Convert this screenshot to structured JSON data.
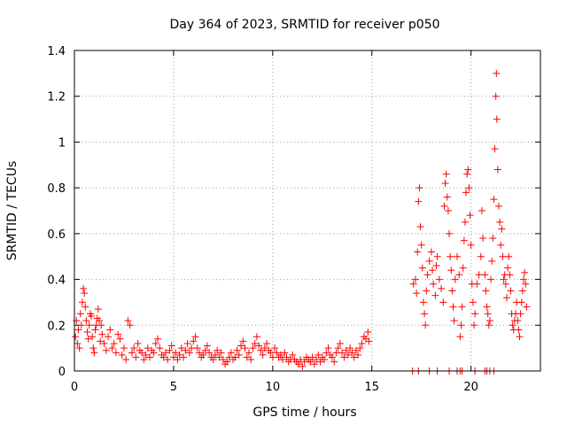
{
  "chart_data": {
    "type": "scatter",
    "title": "Day 364 of 2023, SRMTID for receiver p050",
    "xlabel": "GPS time / hours",
    "ylabel": "SRMTID / TECUs",
    "xlim": [
      0,
      23.5
    ],
    "ylim": [
      0,
      1.4
    ],
    "x_ticks": [
      0,
      5,
      10,
      15,
      20
    ],
    "x_tick_labels": [
      "0",
      "5",
      "10",
      "15",
      "20"
    ],
    "y_ticks": [
      0,
      0.2,
      0.4,
      0.6,
      0.8,
      1.0,
      1.2,
      1.4
    ],
    "y_tick_labels": [
      "0",
      "0.2",
      "0.4",
      "0.6",
      "0.8",
      "1",
      "1.2",
      "1.4"
    ],
    "grid": true,
    "marker": "plus",
    "series": [
      {
        "name": "SRMTID",
        "color": "#ff0000",
        "points": [
          [
            0.05,
            0.15
          ],
          [
            0.1,
            0.22
          ],
          [
            0.15,
            0.12
          ],
          [
            0.2,
            0.18
          ],
          [
            0.25,
            0.1
          ],
          [
            0.3,
            0.25
          ],
          [
            0.35,
            0.2
          ],
          [
            0.4,
            0.3
          ],
          [
            0.45,
            0.36
          ],
          [
            0.5,
            0.34
          ],
          [
            0.55,
            0.28
          ],
          [
            0.6,
            0.22
          ],
          [
            0.65,
            0.17
          ],
          [
            0.7,
            0.14
          ],
          [
            0.75,
            0.2
          ],
          [
            0.8,
            0.25
          ],
          [
            0.85,
            0.24
          ],
          [
            0.9,
            0.15
          ],
          [
            0.95,
            0.1
          ],
          [
            1.0,
            0.08
          ],
          [
            1.05,
            0.18
          ],
          [
            1.1,
            0.2
          ],
          [
            1.15,
            0.23
          ],
          [
            1.2,
            0.27
          ],
          [
            1.25,
            0.22
          ],
          [
            1.3,
            0.13
          ],
          [
            1.35,
            0.2
          ],
          [
            1.4,
            0.16
          ],
          [
            1.5,
            0.12
          ],
          [
            1.6,
            0.09
          ],
          [
            1.7,
            0.15
          ],
          [
            1.8,
            0.18
          ],
          [
            1.9,
            0.1
          ],
          [
            2.0,
            0.12
          ],
          [
            2.1,
            0.08
          ],
          [
            2.2,
            0.16
          ],
          [
            2.3,
            0.14
          ],
          [
            2.4,
            0.07
          ],
          [
            2.5,
            0.1
          ],
          [
            2.6,
            0.05
          ],
          [
            2.7,
            0.22
          ],
          [
            2.8,
            0.2
          ],
          [
            2.9,
            0.08
          ],
          [
            3.0,
            0.1
          ],
          [
            3.1,
            0.06
          ],
          [
            3.2,
            0.12
          ],
          [
            3.3,
            0.09
          ],
          [
            3.4,
            0.08
          ],
          [
            3.5,
            0.05
          ],
          [
            3.6,
            0.07
          ],
          [
            3.7,
            0.1
          ],
          [
            3.8,
            0.06
          ],
          [
            3.9,
            0.09
          ],
          [
            4.0,
            0.08
          ],
          [
            4.1,
            0.12
          ],
          [
            4.2,
            0.14
          ],
          [
            4.3,
            0.1
          ],
          [
            4.4,
            0.07
          ],
          [
            4.5,
            0.06
          ],
          [
            4.6,
            0.08
          ],
          [
            4.7,
            0.05
          ],
          [
            4.8,
            0.09
          ],
          [
            4.9,
            0.11
          ],
          [
            5.0,
            0.06
          ],
          [
            5.1,
            0.08
          ],
          [
            5.2,
            0.05
          ],
          [
            5.3,
            0.07
          ],
          [
            5.4,
            0.1
          ],
          [
            5.5,
            0.06
          ],
          [
            5.6,
            0.09
          ],
          [
            5.7,
            0.12
          ],
          [
            5.8,
            0.08
          ],
          [
            5.9,
            0.1
          ],
          [
            6.0,
            0.13
          ],
          [
            6.1,
            0.15
          ],
          [
            6.2,
            0.1
          ],
          [
            6.3,
            0.08
          ],
          [
            6.4,
            0.06
          ],
          [
            6.5,
            0.07
          ],
          [
            6.6,
            0.09
          ],
          [
            6.7,
            0.11
          ],
          [
            6.8,
            0.08
          ],
          [
            6.9,
            0.06
          ],
          [
            7.0,
            0.05
          ],
          [
            7.1,
            0.07
          ],
          [
            7.2,
            0.09
          ],
          [
            7.3,
            0.06
          ],
          [
            7.4,
            0.08
          ],
          [
            7.5,
            0.05
          ],
          [
            7.6,
            0.03
          ],
          [
            7.7,
            0.04
          ],
          [
            7.8,
            0.06
          ],
          [
            7.9,
            0.08
          ],
          [
            8.0,
            0.05
          ],
          [
            8.1,
            0.06
          ],
          [
            8.2,
            0.09
          ],
          [
            8.3,
            0.07
          ],
          [
            8.4,
            0.11
          ],
          [
            8.5,
            0.13
          ],
          [
            8.6,
            0.1
          ],
          [
            8.7,
            0.06
          ],
          [
            8.8,
            0.08
          ],
          [
            8.9,
            0.05
          ],
          [
            9.0,
            0.1
          ],
          [
            9.1,
            0.12
          ],
          [
            9.2,
            0.15
          ],
          [
            9.3,
            0.11
          ],
          [
            9.4,
            0.09
          ],
          [
            9.5,
            0.07
          ],
          [
            9.6,
            0.1
          ],
          [
            9.7,
            0.12
          ],
          [
            9.8,
            0.09
          ],
          [
            9.9,
            0.08
          ],
          [
            10.0,
            0.06
          ],
          [
            10.1,
            0.1
          ],
          [
            10.2,
            0.08
          ],
          [
            10.3,
            0.06
          ],
          [
            10.4,
            0.07
          ],
          [
            10.5,
            0.05
          ],
          [
            10.6,
            0.08
          ],
          [
            10.7,
            0.06
          ],
          [
            10.8,
            0.04
          ],
          [
            10.9,
            0.05
          ],
          [
            11.0,
            0.07
          ],
          [
            11.1,
            0.05
          ],
          [
            11.2,
            0.04
          ],
          [
            11.3,
            0.03
          ],
          [
            11.4,
            0.05
          ],
          [
            11.5,
            0.02
          ],
          [
            11.6,
            0.04
          ],
          [
            11.7,
            0.06
          ],
          [
            11.8,
            0.05
          ],
          [
            11.9,
            0.04
          ],
          [
            12.0,
            0.06
          ],
          [
            12.1,
            0.03
          ],
          [
            12.2,
            0.05
          ],
          [
            12.3,
            0.07
          ],
          [
            12.4,
            0.04
          ],
          [
            12.5,
            0.06
          ],
          [
            12.6,
            0.05
          ],
          [
            12.7,
            0.08
          ],
          [
            12.8,
            0.1
          ],
          [
            12.9,
            0.07
          ],
          [
            13.0,
            0.06
          ],
          [
            13.1,
            0.04
          ],
          [
            13.2,
            0.08
          ],
          [
            13.3,
            0.1
          ],
          [
            13.4,
            0.12
          ],
          [
            13.5,
            0.08
          ],
          [
            13.6,
            0.06
          ],
          [
            13.7,
            0.09
          ],
          [
            13.8,
            0.07
          ],
          [
            13.9,
            0.1
          ],
          [
            14.0,
            0.08
          ],
          [
            14.1,
            0.06
          ],
          [
            14.2,
            0.09
          ],
          [
            14.3,
            0.07
          ],
          [
            14.4,
            0.1
          ],
          [
            14.5,
            0.12
          ],
          [
            14.6,
            0.15
          ],
          [
            14.7,
            0.14
          ],
          [
            14.8,
            0.17
          ],
          [
            14.85,
            0.13
          ],
          [
            17.1,
            0.38
          ],
          [
            17.2,
            0.4
          ],
          [
            17.25,
            0.34
          ],
          [
            17.3,
            0.52
          ],
          [
            17.35,
            0.74
          ],
          [
            17.4,
            0.8
          ],
          [
            17.45,
            0.63
          ],
          [
            17.5,
            0.55
          ],
          [
            17.55,
            0.45
          ],
          [
            17.6,
            0.3
          ],
          [
            17.65,
            0.25
          ],
          [
            17.7,
            0.2
          ],
          [
            17.75,
            0.35
          ],
          [
            17.8,
            0.42
          ],
          [
            17.9,
            0.48
          ],
          [
            18.0,
            0.52
          ],
          [
            18.05,
            0.44
          ],
          [
            18.1,
            0.38
          ],
          [
            18.2,
            0.33
          ],
          [
            18.25,
            0.46
          ],
          [
            18.3,
            0.5
          ],
          [
            18.4,
            0.4
          ],
          [
            18.5,
            0.36
          ],
          [
            18.6,
            0.3
          ],
          [
            18.65,
            0.72
          ],
          [
            18.7,
            0.82
          ],
          [
            18.75,
            0.86
          ],
          [
            18.8,
            0.76
          ],
          [
            18.85,
            0.7
          ],
          [
            18.9,
            0.6
          ],
          [
            18.95,
            0.5
          ],
          [
            19.0,
            0.44
          ],
          [
            19.05,
            0.35
          ],
          [
            19.1,
            0.28
          ],
          [
            19.15,
            0.22
          ],
          [
            19.2,
            0.4
          ],
          [
            19.3,
            0.5
          ],
          [
            19.4,
            0.42
          ],
          [
            19.45,
            0.15
          ],
          [
            19.5,
            0.2
          ],
          [
            19.55,
            0.28
          ],
          [
            19.6,
            0.45
          ],
          [
            19.65,
            0.57
          ],
          [
            19.7,
            0.65
          ],
          [
            19.75,
            0.78
          ],
          [
            19.8,
            0.86
          ],
          [
            19.85,
            0.88
          ],
          [
            19.9,
            0.8
          ],
          [
            19.95,
            0.68
          ],
          [
            20.0,
            0.55
          ],
          [
            20.05,
            0.38
          ],
          [
            20.1,
            0.3
          ],
          [
            20.15,
            0.2
          ],
          [
            20.2,
            0.25
          ],
          [
            20.3,
            0.38
          ],
          [
            20.4,
            0.42
          ],
          [
            20.5,
            0.5
          ],
          [
            20.55,
            0.7
          ],
          [
            20.6,
            0.58
          ],
          [
            20.7,
            0.42
          ],
          [
            20.75,
            0.35
          ],
          [
            20.8,
            0.28
          ],
          [
            20.85,
            0.25
          ],
          [
            20.9,
            0.2
          ],
          [
            20.95,
            0.22
          ],
          [
            21.0,
            0.4
          ],
          [
            21.05,
            0.48
          ],
          [
            21.1,
            0.58
          ],
          [
            21.15,
            0.75
          ],
          [
            21.2,
            0.97
          ],
          [
            21.25,
            1.2
          ],
          [
            21.28,
            1.3
          ],
          [
            21.3,
            1.1
          ],
          [
            21.35,
            0.88
          ],
          [
            21.4,
            0.72
          ],
          [
            21.45,
            0.65
          ],
          [
            21.5,
            0.55
          ],
          [
            21.55,
            0.62
          ],
          [
            21.6,
            0.5
          ],
          [
            21.65,
            0.4
          ],
          [
            21.7,
            0.42
          ],
          [
            21.75,
            0.38
          ],
          [
            21.8,
            0.32
          ],
          [
            21.85,
            0.45
          ],
          [
            21.9,
            0.5
          ],
          [
            21.95,
            0.42
          ],
          [
            22.0,
            0.35
          ],
          [
            22.05,
            0.25
          ],
          [
            22.1,
            0.2
          ],
          [
            22.15,
            0.18
          ],
          [
            22.2,
            0.22
          ],
          [
            22.25,
            0.25
          ],
          [
            22.3,
            0.3
          ],
          [
            22.35,
            0.22
          ],
          [
            22.4,
            0.18
          ],
          [
            22.45,
            0.15
          ],
          [
            22.5,
            0.25
          ],
          [
            22.55,
            0.3
          ],
          [
            22.6,
            0.35
          ],
          [
            22.65,
            0.4
          ],
          [
            22.7,
            0.43
          ],
          [
            22.75,
            0.38
          ],
          [
            22.8,
            0.28
          ],
          [
            17.05,
            0.0
          ],
          [
            17.35,
            0.0
          ],
          [
            17.9,
            0.0
          ],
          [
            18.3,
            0.0
          ],
          [
            18.9,
            0.0
          ],
          [
            19.3,
            0.0
          ],
          [
            19.45,
            0.0
          ],
          [
            19.55,
            0.0
          ],
          [
            20.2,
            0.0
          ],
          [
            20.7,
            0.0
          ],
          [
            20.8,
            0.0
          ],
          [
            20.95,
            0.0
          ],
          [
            21.15,
            0.0
          ]
        ]
      }
    ]
  }
}
